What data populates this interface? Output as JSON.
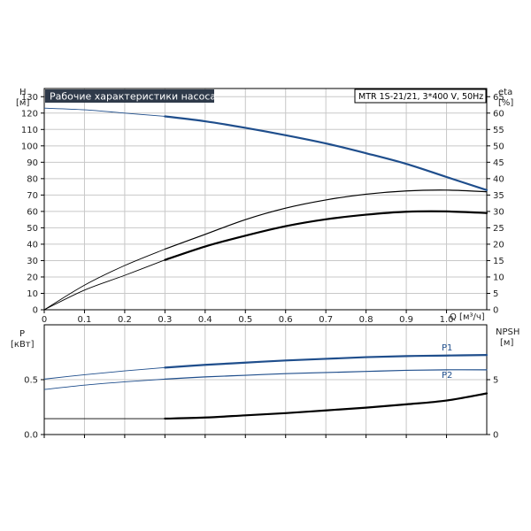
{
  "chart_data": [
    {
      "type": "line",
      "title": "Рабочие характеристики насоса",
      "model": "MTR 1S-21/21, 3*400 V, 50Hz",
      "xlabel": "Q [м³/ч]",
      "ylabel_left_name": "H",
      "ylabel_left_unit": "[м]",
      "ylabel_right_name": "eta",
      "ylabel_right_unit": "[%]",
      "xlim": [
        0,
        1.1
      ],
      "ylim_left": [
        0,
        135
      ],
      "ylim_right": [
        0,
        67.5
      ],
      "x_ticks": [
        "0",
        "0.1",
        "0.2",
        "0.3",
        "0.4",
        "0.5",
        "0.6",
        "0.7",
        "0.8",
        "0.9",
        "1.0"
      ],
      "y_left_ticks": [
        "0",
        "10",
        "20",
        "30",
        "40",
        "50",
        "60",
        "70",
        "80",
        "90",
        "100",
        "110",
        "120",
        "130"
      ],
      "y_right_ticks": [
        "0",
        "5",
        "10",
        "15",
        "20",
        "25",
        "30",
        "35",
        "40",
        "45",
        "50",
        "55",
        "60",
        "65"
      ],
      "grid": true,
      "series": [
        {
          "color": "#1f4e8c",
          "axis": "left",
          "x": [
            0,
            0.1,
            0.2,
            0.3,
            0.4,
            0.5,
            0.6,
            0.7,
            0.8,
            0.9,
            1.0,
            1.1
          ],
          "y": [
            123,
            122,
            120,
            118,
            115,
            111,
            106.5,
            101.5,
            95.5,
            89,
            81,
            73
          ]
        },
        {
          "color": "#000000",
          "axis": "left",
          "x": [
            0,
            0.1,
            0.2,
            0.3,
            0.4,
            0.5,
            0.6,
            0.7,
            0.8,
            0.9,
            1.0,
            1.1
          ],
          "y": [
            0,
            15,
            27,
            37,
            46,
            55,
            62,
            67,
            70.5,
            72.5,
            73,
            72
          ]
        },
        {
          "color": "#000000",
          "axis": "right",
          "x": [
            0,
            0.1,
            0.2,
            0.3,
            0.4,
            0.5,
            0.6,
            0.7,
            0.8,
            0.9,
            1.0,
            1.1
          ],
          "y": [
            0,
            6,
            10.5,
            15.2,
            19.3,
            22.6,
            25.5,
            27.6,
            29,
            29.9,
            30,
            29.5
          ]
        }
      ]
    },
    {
      "type": "line",
      "ylabel_left_name": "P",
      "ylabel_left_unit": "[кВт]",
      "ylabel_right_name": "NPSH",
      "ylabel_right_unit": "[м]",
      "xlim": [
        0,
        1.1
      ],
      "ylim_left": [
        0,
        1.0
      ],
      "ylim_right": [
        0,
        10
      ],
      "y_left_ticks": [
        {
          "value": 0,
          "label": "0.0"
        },
        {
          "value": 0.5,
          "label": "0.5"
        }
      ],
      "y_right_ticks": [
        {
          "value": 0,
          "label": "0"
        },
        {
          "value": 5,
          "label": "5"
        }
      ],
      "grid": true,
      "series": [
        {
          "name": "P1",
          "color": "#1f4e8c",
          "axis": "left",
          "x": [
            0,
            0.1,
            0.2,
            0.3,
            0.4,
            0.5,
            0.6,
            0.7,
            0.8,
            0.9,
            1.0,
            1.1
          ],
          "y": [
            0.505,
            0.545,
            0.58,
            0.61,
            0.635,
            0.655,
            0.675,
            0.69,
            0.705,
            0.715,
            0.72,
            0.725
          ]
        },
        {
          "name": "P2",
          "color": "#1f4e8c",
          "axis": "left",
          "x": [
            0,
            0.1,
            0.2,
            0.3,
            0.4,
            0.5,
            0.6,
            0.7,
            0.8,
            0.9,
            1.0,
            1.1
          ],
          "y": [
            0.41,
            0.45,
            0.48,
            0.505,
            0.525,
            0.54,
            0.555,
            0.565,
            0.575,
            0.585,
            0.59,
            0.59
          ]
        },
        {
          "color": "#000000",
          "axis": "right",
          "x": [
            0,
            0.1,
            0.2,
            0.3,
            0.4,
            0.5,
            0.6,
            0.7,
            0.8,
            0.9,
            1.0,
            1.1
          ],
          "y": [
            1.45,
            1.45,
            1.45,
            1.45,
            1.55,
            1.75,
            1.95,
            2.2,
            2.45,
            2.75,
            3.1,
            3.75
          ]
        }
      ]
    }
  ]
}
